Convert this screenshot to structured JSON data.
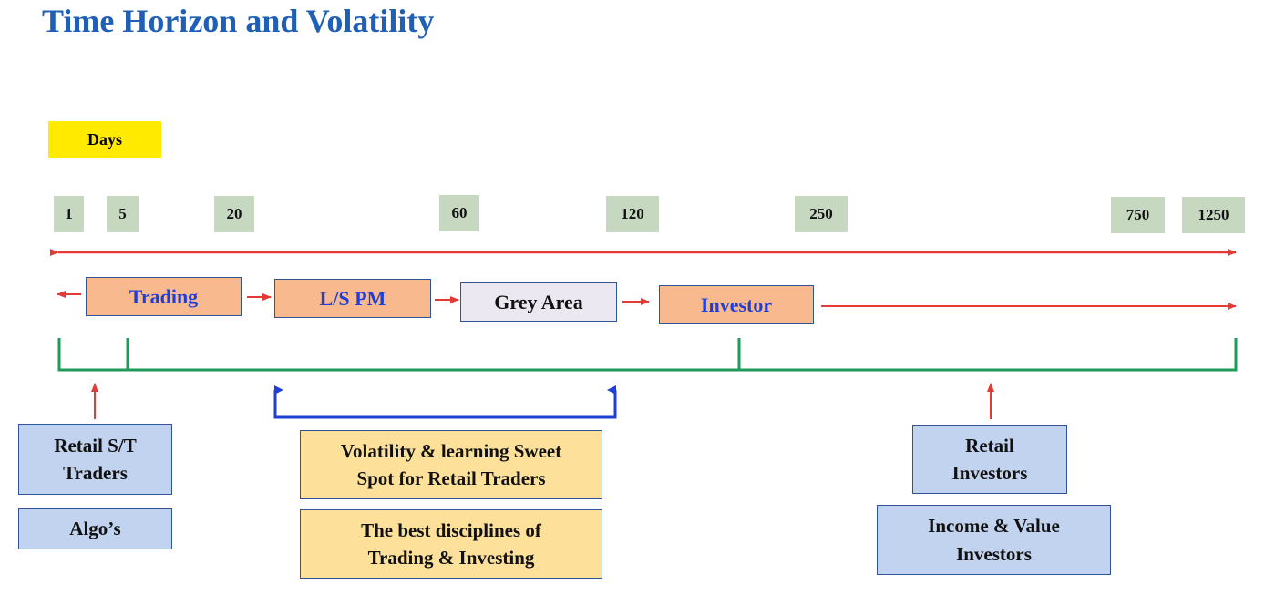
{
  "title": "Time Horizon and Volatility",
  "axis_label": "Days",
  "ticks": [
    "1",
    "5",
    "20",
    "60",
    "120",
    "250",
    "750",
    "1250"
  ],
  "stages": {
    "trading": "Trading",
    "ls_pm": "L/S PM",
    "grey_area": "Grey Area",
    "investor": "Investor"
  },
  "groups": {
    "retail_st_traders": [
      "Retail S/T",
      "Traders"
    ],
    "algos": "Algo’s",
    "sweet_spot": [
      "Volatility & learning Sweet",
      "Spot for Retail Traders"
    ],
    "best_disciplines": [
      "The best disciplines of",
      "Trading & Investing"
    ],
    "retail_investors": [
      "Retail",
      "Investors"
    ],
    "income_value": [
      "Income & Value",
      "Investors"
    ]
  },
  "colors": {
    "title": "#1f5fb5",
    "days_highlight": "#ffea00",
    "tick_bg": "#c6d9c0",
    "stage_orange": "#f8b98f",
    "stage_grey": "#ece8f2",
    "box_blue": "#c2d3ef",
    "box_yellow": "#fde19a",
    "arrow_red": "#e53935",
    "bracket_green": "#1e9a5a",
    "bracket_blue": "#1f3fd6"
  }
}
